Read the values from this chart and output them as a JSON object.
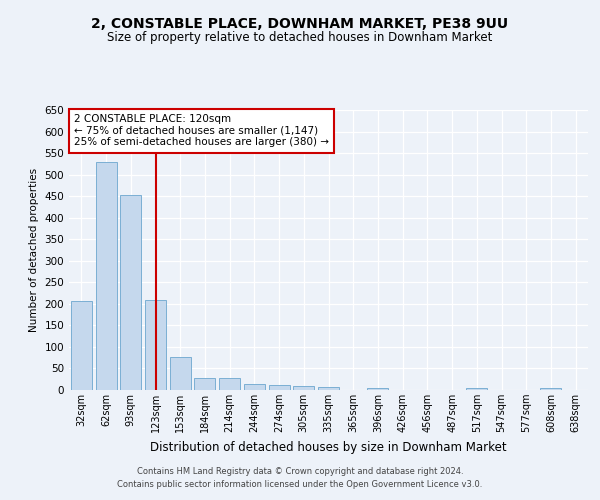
{
  "title": "2, CONSTABLE PLACE, DOWNHAM MARKET, PE38 9UU",
  "subtitle": "Size of property relative to detached houses in Downham Market",
  "xlabel": "Distribution of detached houses by size in Downham Market",
  "ylabel": "Number of detached properties",
  "categories": [
    "32sqm",
    "62sqm",
    "93sqm",
    "123sqm",
    "153sqm",
    "184sqm",
    "214sqm",
    "244sqm",
    "274sqm",
    "305sqm",
    "335sqm",
    "365sqm",
    "396sqm",
    "426sqm",
    "456sqm",
    "487sqm",
    "517sqm",
    "547sqm",
    "577sqm",
    "608sqm",
    "638sqm"
  ],
  "values": [
    207,
    530,
    452,
    210,
    76,
    27,
    27,
    15,
    12,
    10,
    7,
    0,
    5,
    0,
    0,
    0,
    5,
    0,
    0,
    5,
    0
  ],
  "bar_color": "#c5d8ed",
  "bar_edge_color": "#7bafd4",
  "highlight_index": 3,
  "highlight_line_color": "#cc0000",
  "ylim": [
    0,
    650
  ],
  "yticks": [
    0,
    50,
    100,
    150,
    200,
    250,
    300,
    350,
    400,
    450,
    500,
    550,
    600,
    650
  ],
  "annotation_text": "2 CONSTABLE PLACE: 120sqm\n← 75% of detached houses are smaller (1,147)\n25% of semi-detached houses are larger (380) →",
  "annotation_box_color": "#ffffff",
  "annotation_box_edge": "#cc0000",
  "footer_line1": "Contains HM Land Registry data © Crown copyright and database right 2024.",
  "footer_line2": "Contains public sector information licensed under the Open Government Licence v3.0.",
  "bg_color": "#edf2f9",
  "plot_bg_color": "#edf2f9",
  "grid_color": "#ffffff"
}
